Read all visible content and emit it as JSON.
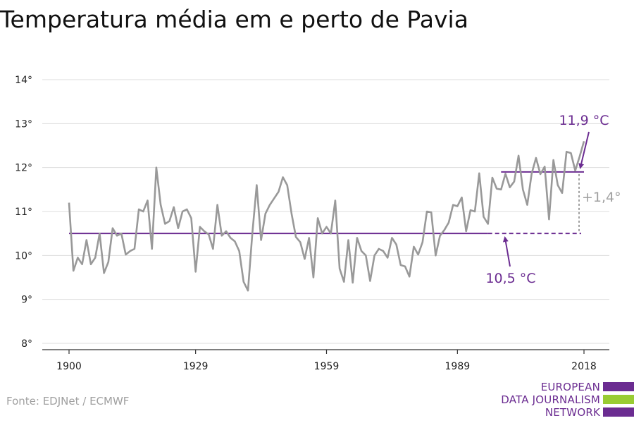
{
  "chart_data": {
    "type": "line",
    "title": "Temperatura média em e perto de Pavia",
    "source": "Fonte: EDJNet / ECMWF",
    "x_ticks": [
      "1900",
      "1929",
      "1959",
      "1989",
      "2018"
    ],
    "y_ticks": [
      "8°",
      "9°",
      "10°",
      "11°",
      "12°",
      "13°",
      "14°"
    ],
    "xlim": [
      1900,
      2018
    ],
    "ylim": [
      8,
      14
    ],
    "series": [
      {
        "x_start": 1900,
        "values": [
          11.2,
          9.65,
          9.95,
          9.8,
          10.35,
          9.8,
          9.95,
          10.5,
          9.6,
          9.85,
          10.62,
          10.45,
          10.5,
          10.02,
          10.1,
          10.15,
          11.05,
          11.0,
          11.25,
          10.15,
          12.0,
          11.15,
          10.72,
          10.78,
          11.1,
          10.62,
          11.0,
          11.05,
          10.85,
          9.63,
          10.65,
          10.55,
          10.48,
          10.15,
          11.15,
          10.45,
          10.55,
          10.4,
          10.32,
          10.1,
          9.4,
          9.2,
          10.5,
          11.6,
          10.35,
          10.95,
          11.15,
          11.3,
          11.45,
          11.78,
          11.6,
          10.95,
          10.42,
          10.3,
          9.92,
          10.4,
          9.5,
          10.85,
          10.5,
          10.65,
          10.5,
          11.25,
          9.7,
          9.4,
          10.35,
          9.38,
          10.4,
          10.1,
          10.0,
          9.42,
          10.0,
          10.15,
          10.1,
          9.95,
          10.4,
          10.25,
          9.78,
          9.75,
          9.52,
          10.2,
          10.02,
          10.3,
          11.0,
          10.98,
          10.0,
          10.45,
          10.58,
          10.75,
          11.15,
          11.12,
          11.32,
          10.55,
          11.03,
          11.0,
          11.87,
          10.88,
          10.72,
          11.77,
          11.52,
          11.5,
          11.86,
          11.55,
          11.68,
          12.27,
          11.5,
          11.15,
          11.86,
          12.22,
          11.85,
          12.02,
          10.82,
          12.17,
          11.6,
          11.42,
          12.36,
          12.33,
          11.93,
          12.25,
          12.6
        ]
      }
    ],
    "reference_lines": [
      {
        "label": "10,5 °C",
        "value": 10.5,
        "from": 1900,
        "to": 1996,
        "dashed_to": 2018
      },
      {
        "label": "11,9 °C",
        "value": 11.9,
        "from": 1999,
        "to": 2018
      }
    ],
    "difference_label": "+1,4°",
    "colors": {
      "series": "#999999",
      "reference": "#6b2c91",
      "grid": "#dddddd",
      "diff": "#a0a0a0",
      "logo_green": "#99cc33"
    }
  },
  "logo": {
    "line1": "EUROPEAN",
    "line2": "DATA JOURNALISM",
    "line3": "NETWORK"
  }
}
